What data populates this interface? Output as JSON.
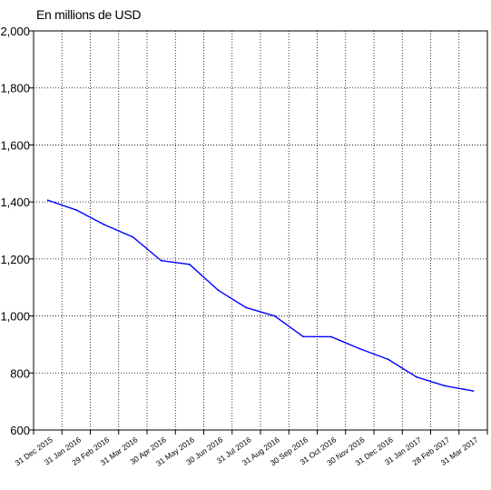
{
  "chart_data": {
    "type": "line",
    "title": "",
    "unit_label": "En millions de USD",
    "xlabel": "",
    "ylabel": "",
    "ylim": [
      600,
      2000
    ],
    "yticks": [
      600,
      800,
      1000,
      1200,
      1400,
      1600,
      1800,
      2000
    ],
    "ytick_labels": [
      "600",
      "800",
      "1,000",
      "1,200",
      "1,400",
      "1,600",
      "1,800",
      "2,000"
    ],
    "grid": true,
    "categories": [
      "31 Dec 2015",
      "31 Jan 2016",
      "29 Feb 2016",
      "31 Mar 2016",
      "30 Apr 2016",
      "31 May 2016",
      "30 Jun 2016",
      "31 Jul 2016",
      "31 Aug 2016",
      "30 Sep 2016",
      "31 Oct 2016",
      "30 Nov 2016",
      "31 Dec 2016",
      "31 Jan 2017",
      "28 Feb 2017",
      "31 Mar 2017"
    ],
    "series": [
      {
        "color": "#0000ff",
        "values": [
          1406,
          1372,
          1320,
          1277,
          1194,
          1181,
          1091,
          1029,
          1000,
          928,
          927,
          885,
          848,
          786,
          755,
          737
        ]
      }
    ]
  }
}
